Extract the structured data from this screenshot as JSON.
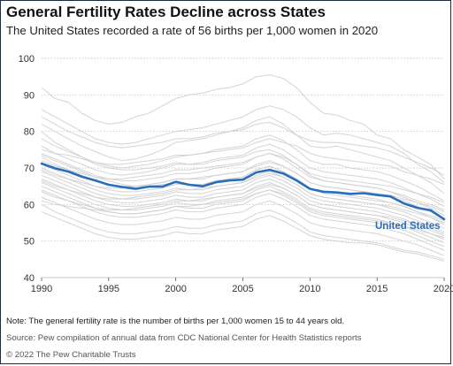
{
  "chart_data": {
    "type": "line",
    "title": "General Fertility Rates Decline across States",
    "subtitle": "The United States recorded a rate of 56 births per 1,000 women in 2020",
    "xlabel": "",
    "ylabel": "",
    "xlim": [
      1990,
      2020
    ],
    "ylim": [
      40,
      100
    ],
    "x_ticks": [
      "1990",
      "1995",
      "2000",
      "2005",
      "2010",
      "2015",
      "2020"
    ],
    "y_ticks": [
      "100",
      "90",
      "80",
      "70",
      "60",
      "50",
      "40"
    ],
    "grid": true,
    "highlight_color": "#2a6ebb",
    "state_line_color": "#cfcfcf",
    "x": [
      1990,
      1991,
      1992,
      1993,
      1994,
      1995,
      1996,
      1997,
      1998,
      1999,
      2000,
      2001,
      2002,
      2003,
      2004,
      2005,
      2006,
      2007,
      2008,
      2009,
      2010,
      2011,
      2012,
      2013,
      2014,
      2015,
      2016,
      2017,
      2018,
      2019,
      2020
    ],
    "series": [
      {
        "name": "United States",
        "highlight": true,
        "values": [
          71.2,
          69.9,
          69.0,
          67.6,
          66.6,
          65.4,
          64.8,
          64.3,
          64.9,
          64.9,
          66.2,
          65.4,
          65.0,
          66.1,
          66.6,
          66.8,
          68.8,
          69.5,
          68.5,
          66.6,
          64.3,
          63.5,
          63.3,
          62.9,
          63.1,
          62.6,
          62.2,
          60.3,
          59.1,
          58.4,
          56.0
        ]
      },
      {
        "values": [
          92.0,
          89.0,
          88.0,
          85.0,
          83.0,
          82.0,
          82.5,
          84.0,
          85.0,
          87.0,
          89.0,
          90.0,
          90.5,
          91.5,
          92.0,
          93.0,
          95.0,
          95.5,
          94.5,
          92.0,
          88.0,
          85.0,
          84.5,
          83.0,
          82.0,
          79.0,
          78.0,
          75.0,
          73.0,
          71.0,
          67.0
        ]
      },
      {
        "values": [
          86.0,
          84.0,
          82.0,
          80.0,
          78.0,
          77.0,
          76.5,
          77.0,
          78.0,
          79.0,
          80.0,
          80.5,
          81.0,
          82.0,
          83.0,
          84.0,
          86.0,
          87.0,
          86.0,
          84.0,
          81.0,
          79.0,
          79.5,
          79.0,
          78.0,
          77.0,
          76.0,
          74.0,
          71.0,
          69.0,
          66.0
        ]
      },
      {
        "values": [
          82.0,
          80.0,
          78.0,
          76.0,
          74.5,
          73.0,
          72.0,
          72.5,
          73.5,
          75.0,
          77.0,
          77.5,
          78.0,
          79.0,
          80.0,
          81.0,
          83.0,
          84.0,
          82.0,
          79.0,
          76.0,
          75.5,
          76.0,
          75.0,
          74.0,
          73.0,
          72.0,
          70.0,
          68.0,
          66.0,
          63.0
        ]
      },
      {
        "values": [
          78.0,
          76.0,
          74.5,
          73.0,
          71.5,
          70.5,
          70.0,
          70.5,
          71.0,
          72.0,
          73.0,
          73.5,
          74.0,
          75.0,
          75.5,
          76.0,
          78.0,
          79.0,
          77.5,
          75.0,
          72.0,
          71.0,
          71.0,
          70.0,
          69.5,
          69.0,
          68.0,
          66.5,
          65.0,
          63.0,
          61.0
        ]
      },
      {
        "values": [
          76.0,
          74.0,
          72.5,
          71.0,
          69.5,
          68.5,
          68.0,
          68.5,
          69.0,
          70.0,
          71.0,
          71.0,
          71.5,
          72.5,
          73.0,
          73.5,
          75.5,
          76.5,
          75.0,
          72.5,
          70.0,
          69.0,
          68.5,
          68.0,
          67.5,
          67.0,
          66.0,
          64.5,
          63.0,
          61.5,
          59.5
        ]
      },
      {
        "values": [
          74.0,
          72.5,
          71.0,
          69.5,
          68.0,
          67.0,
          66.5,
          66.5,
          67.0,
          67.5,
          68.5,
          68.5,
          69.0,
          70.0,
          70.5,
          71.0,
          73.0,
          74.0,
          72.5,
          70.0,
          67.5,
          66.5,
          66.0,
          65.5,
          65.0,
          64.5,
          63.5,
          62.0,
          60.5,
          59.0,
          57.0
        ]
      },
      {
        "values": [
          73.0,
          71.0,
          69.5,
          68.0,
          66.5,
          65.5,
          65.0,
          65.0,
          65.5,
          66.0,
          67.0,
          67.0,
          67.0,
          68.0,
          68.5,
          69.0,
          71.0,
          72.0,
          70.5,
          68.5,
          66.0,
          65.0,
          64.5,
          64.0,
          63.5,
          63.0,
          62.0,
          61.0,
          59.5,
          58.0,
          56.0
        ]
      },
      {
        "values": [
          71.0,
          69.5,
          68.0,
          66.5,
          65.0,
          64.0,
          63.5,
          63.5,
          64.0,
          64.5,
          65.5,
          65.5,
          65.5,
          66.5,
          67.0,
          67.5,
          69.5,
          70.5,
          69.0,
          67.0,
          64.5,
          63.5,
          63.0,
          62.5,
          62.0,
          61.5,
          60.5,
          59.5,
          58.0,
          56.5,
          54.5
        ]
      },
      {
        "values": [
          70.0,
          68.5,
          67.0,
          65.5,
          64.0,
          63.0,
          62.5,
          62.5,
          63.0,
          63.5,
          64.5,
          64.0,
          64.0,
          65.0,
          65.5,
          66.0,
          68.0,
          69.0,
          67.5,
          65.5,
          63.0,
          62.0,
          61.5,
          61.0,
          60.5,
          60.0,
          59.0,
          58.0,
          56.5,
          55.0,
          53.5
        ]
      },
      {
        "values": [
          69.0,
          67.5,
          66.0,
          64.5,
          63.0,
          62.0,
          61.5,
          61.5,
          62.0,
          62.5,
          63.5,
          63.0,
          63.0,
          64.0,
          64.5,
          65.0,
          67.0,
          68.0,
          66.5,
          64.5,
          62.0,
          61.0,
          60.5,
          60.0,
          59.5,
          59.0,
          58.0,
          57.0,
          55.5,
          54.0,
          52.5
        ]
      },
      {
        "values": [
          68.0,
          66.5,
          65.0,
          63.5,
          62.0,
          61.0,
          60.5,
          60.5,
          61.0,
          61.5,
          62.5,
          62.0,
          62.0,
          63.0,
          63.5,
          64.0,
          66.0,
          67.0,
          65.5,
          63.5,
          61.0,
          60.0,
          59.5,
          59.0,
          58.5,
          58.0,
          57.0,
          56.0,
          54.5,
          53.0,
          51.5
        ]
      },
      {
        "values": [
          67.0,
          65.5,
          64.0,
          62.5,
          61.0,
          60.0,
          59.5,
          59.5,
          60.0,
          60.5,
          61.5,
          61.0,
          61.0,
          62.0,
          62.5,
          63.0,
          65.0,
          66.0,
          64.5,
          62.5,
          60.0,
          59.0,
          58.5,
          58.0,
          57.5,
          57.0,
          56.0,
          55.0,
          53.5,
          52.0,
          50.5
        ]
      },
      {
        "values": [
          66.0,
          64.5,
          63.0,
          61.5,
          60.0,
          59.0,
          58.5,
          58.5,
          59.0,
          59.5,
          60.5,
          60.0,
          60.0,
          61.0,
          61.5,
          62.0,
          64.0,
          65.0,
          63.5,
          61.5,
          59.0,
          58.0,
          57.5,
          57.0,
          56.5,
          56.0,
          55.0,
          54.0,
          52.5,
          51.0,
          49.5
        ]
      },
      {
        "values": [
          65.0,
          63.5,
          62.0,
          60.5,
          59.0,
          58.0,
          57.5,
          57.5,
          58.0,
          58.5,
          59.5,
          59.0,
          59.0,
          60.0,
          60.5,
          61.0,
          63.0,
          64.0,
          62.5,
          60.5,
          58.0,
          57.0,
          56.5,
          56.0,
          55.5,
          55.0,
          54.0,
          53.0,
          51.5,
          50.0,
          48.5
        ]
      },
      {
        "values": [
          64.0,
          62.5,
          61.0,
          59.5,
          58.0,
          57.0,
          56.5,
          56.5,
          57.0,
          57.5,
          58.5,
          58.0,
          58.0,
          59.0,
          59.5,
          60.0,
          62.0,
          63.0,
          61.5,
          59.5,
          57.0,
          56.0,
          55.5,
          55.0,
          54.5,
          54.0,
          53.0,
          52.0,
          50.5,
          49.0,
          47.5
        ]
      },
      {
        "values": [
          62.0,
          60.5,
          59.0,
          57.5,
          56.0,
          55.0,
          54.5,
          54.5,
          55.0,
          55.5,
          56.5,
          56.0,
          56.0,
          57.0,
          57.5,
          58.0,
          60.0,
          61.0,
          59.5,
          57.5,
          55.0,
          54.0,
          53.5,
          53.0,
          52.5,
          52.0,
          51.0,
          50.0,
          49.0,
          47.5,
          46.0
        ]
      },
      {
        "values": [
          60.0,
          58.0,
          56.5,
          55.0,
          53.5,
          52.5,
          52.0,
          52.0,
          52.5,
          53.0,
          54.0,
          53.5,
          53.5,
          54.5,
          55.0,
          55.5,
          57.5,
          58.5,
          57.0,
          55.0,
          52.5,
          51.5,
          51.0,
          50.5,
          50.0,
          49.5,
          48.5,
          47.5,
          47.0,
          46.0,
          45.0
        ]
      },
      {
        "values": [
          58.0,
          56.5,
          55.0,
          53.5,
          52.0,
          51.0,
          50.5,
          50.5,
          51.0,
          51.5,
          52.5,
          52.0,
          52.0,
          53.0,
          53.5,
          54.0,
          56.0,
          57.0,
          55.5,
          53.5,
          51.5,
          50.5,
          50.0,
          49.5,
          49.5,
          49.0,
          48.0,
          47.0,
          46.5,
          45.5,
          44.5
        ]
      },
      {
        "values": [
          75.0,
          74.0,
          73.5,
          72.5,
          71.5,
          71.0,
          71.0,
          71.5,
          72.0,
          72.5,
          73.5,
          73.5,
          74.0,
          74.5,
          75.0,
          75.5,
          77.0,
          78.0,
          77.0,
          76.0,
          74.0,
          73.0,
          72.5,
          72.0,
          71.5,
          71.0,
          70.5,
          69.0,
          68.0,
          67.0,
          65.5
        ]
      },
      {
        "values": [
          72.0,
          70.5,
          69.5,
          68.5,
          67.5,
          67.0,
          67.0,
          67.5,
          68.0,
          68.5,
          69.5,
          69.5,
          70.0,
          70.5,
          71.0,
          71.5,
          73.0,
          74.0,
          73.0,
          71.0,
          68.5,
          67.5,
          67.0,
          66.5,
          66.0,
          65.5,
          65.0,
          64.0,
          63.0,
          62.0,
          60.5
        ]
      },
      {
        "values": [
          69.5,
          68.0,
          67.0,
          66.0,
          65.0,
          64.5,
          64.5,
          65.0,
          65.5,
          66.0,
          67.0,
          67.0,
          67.5,
          68.0,
          68.5,
          69.0,
          70.5,
          71.5,
          70.5,
          68.5,
          66.0,
          65.0,
          64.5,
          64.0,
          63.5,
          63.0,
          62.5,
          61.5,
          60.5,
          59.5,
          58.0
        ]
      },
      {
        "values": [
          66.5,
          65.0,
          64.0,
          63.0,
          62.0,
          61.5,
          61.5,
          62.0,
          62.5,
          63.0,
          64.0,
          64.0,
          64.5,
          65.0,
          65.5,
          66.0,
          67.5,
          68.5,
          67.5,
          65.5,
          63.0,
          62.0,
          61.5,
          61.0,
          60.5,
          60.0,
          59.5,
          58.5,
          57.5,
          56.5,
          55.0
        ]
      },
      {
        "values": [
          63.5,
          62.0,
          61.0,
          60.0,
          59.0,
          58.5,
          58.5,
          59.0,
          59.5,
          60.0,
          61.0,
          61.0,
          61.5,
          62.0,
          62.5,
          63.0,
          64.5,
          65.5,
          64.5,
          62.5,
          60.0,
          59.0,
          58.5,
          58.0,
          57.5,
          57.0,
          56.5,
          55.5,
          54.5,
          53.5,
          52.0
        ]
      },
      {
        "values": [
          80.0,
          77.0,
          75.0,
          73.0,
          71.0,
          70.0,
          69.5,
          69.5,
          70.0,
          70.5,
          71.5,
          71.0,
          71.0,
          72.0,
          72.5,
          73.0,
          74.5,
          75.0,
          73.5,
          71.0,
          68.0,
          66.5,
          66.0,
          65.5,
          65.0,
          64.5,
          63.5,
          62.5,
          61.0,
          60.0,
          58.5
        ]
      },
      {
        "values": [
          84.0,
          82.0,
          80.0,
          78.5,
          77.0,
          76.0,
          75.5,
          76.0,
          76.5,
          77.0,
          78.0,
          78.0,
          78.5,
          79.5,
          80.0,
          80.5,
          82.0,
          82.5,
          81.0,
          79.0,
          77.5,
          77.0,
          77.0,
          76.5,
          76.0,
          75.5,
          74.5,
          73.0,
          71.5,
          70.0,
          68.0
        ]
      },
      {
        "values": [
          73.5,
          72.0,
          70.5,
          69.0,
          67.5,
          66.5,
          65.5,
          65.0,
          65.0,
          65.5,
          66.0,
          65.5,
          65.5,
          66.5,
          67.0,
          67.5,
          69.5,
          70.5,
          69.0,
          67.0,
          64.5,
          63.0,
          62.5,
          62.0,
          61.5,
          61.0,
          60.5,
          59.5,
          58.0,
          57.0,
          55.5
        ]
      },
      {
        "values": [
          61.0,
          60.0,
          59.5,
          59.0,
          58.5,
          58.0,
          57.5,
          57.5,
          58.0,
          58.5,
          59.5,
          59.5,
          60.0,
          60.5,
          61.0,
          61.5,
          63.0,
          64.0,
          63.0,
          61.0,
          58.5,
          57.5,
          57.0,
          56.5,
          56.0,
          55.5,
          55.0,
          54.0,
          53.0,
          52.0,
          51.0
        ]
      }
    ]
  },
  "header": {
    "title": "General Fertility Rates Decline across States",
    "subtitle": "The United States recorded a rate of 56 births per 1,000 women in 2020"
  },
  "labels": {
    "us_series": "United States"
  },
  "footer": {
    "note": "Note: The general fertility rate is the number of births per 1,000 women 15 to 44 years old.",
    "source": "Source: Pew compilation of annual data from CDC National Center for Health Statistics reports",
    "copyright": "© 2022 The Pew Charitable Trusts"
  }
}
